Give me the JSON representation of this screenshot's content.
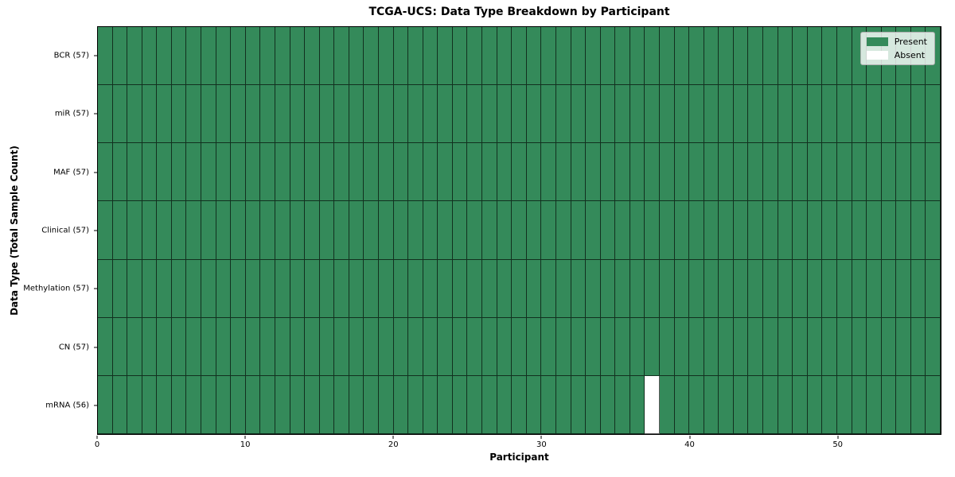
{
  "figure": {
    "background_color": "#ffffff"
  },
  "chart_data": {
    "type": "heatmap",
    "title": "TCGA-UCS: Data Type Breakdown by Participant",
    "xlabel": "Participant",
    "ylabel": "Data Type (Total Sample Count)",
    "rows": [
      "BCR (57)",
      "miR (57)",
      "MAF (57)",
      "Clinical (57)",
      "Methylation (57)",
      "CN (57)",
      "mRNA (56)"
    ],
    "row_present_counts": [
      57,
      57,
      57,
      57,
      57,
      57,
      56
    ],
    "n_participants": 57,
    "xlim": [
      0,
      57
    ],
    "x_tick_values": [
      0,
      10,
      20,
      30,
      40,
      50
    ],
    "x_tick_labels": [
      "0",
      "10",
      "20",
      "30",
      "40",
      "50"
    ],
    "grid_on": true,
    "legend": {
      "position": "upper-right",
      "entries": [
        {
          "label": "Present",
          "color": "#348a5a"
        },
        {
          "label": "Absent",
          "color": "#ffffff"
        }
      ]
    },
    "absent_cells": [
      {
        "row": "mRNA (56)",
        "row_index": 6,
        "participant_index": 37
      }
    ],
    "colors": {
      "present": "#348a5a",
      "absent": "#ffffff",
      "cell_edge": "#1c3c29",
      "axis_spine": "#000000"
    }
  }
}
